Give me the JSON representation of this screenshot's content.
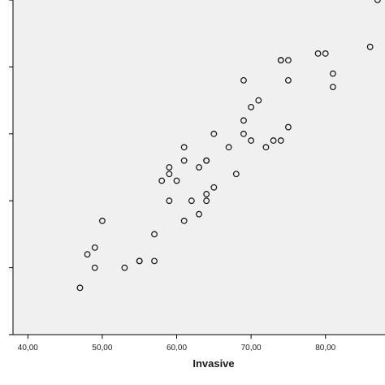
{
  "chart_data": {
    "type": "scatter",
    "title": "",
    "xlabel": "Invasive",
    "ylabel": "",
    "xlim": [
      38,
      88
    ],
    "ylim": [
      50,
      100
    ],
    "xticks": [
      40,
      50,
      60,
      70,
      80
    ],
    "xtick_labels": [
      "40,00",
      "50,00",
      "60,00",
      "70,00",
      "80,00"
    ],
    "yticks": [
      50,
      60,
      70,
      80,
      90,
      100
    ],
    "ytick_labels": [
      "",
      "",
      "",
      "",
      "",
      ""
    ],
    "grid": false,
    "legend": "none",
    "colors": {
      "plot_background": "#f0f0f0",
      "page_background": "#ffffff",
      "marker_stroke": "#111111",
      "axis": "#000000"
    },
    "marker": "open-circle",
    "x": [
      87,
      86,
      79,
      80,
      74,
      75,
      74,
      81,
      69,
      75,
      81,
      71,
      70,
      69,
      75,
      69,
      65,
      73,
      74,
      70,
      67,
      72,
      61,
      64,
      59,
      61,
      64,
      63,
      59,
      58,
      60,
      68,
      65,
      64,
      59,
      62,
      64,
      63,
      50,
      61,
      57,
      49,
      48,
      55,
      57,
      55,
      53,
      49,
      47
    ],
    "y": [
      100,
      93,
      92,
      92,
      91,
      91,
      91,
      89,
      88,
      88,
      87,
      85,
      84,
      82,
      81,
      80,
      80,
      79,
      79,
      79,
      78,
      78,
      78,
      76,
      75,
      76,
      76,
      75,
      74,
      73,
      73,
      74,
      72,
      71,
      70,
      70,
      70,
      68,
      67,
      67,
      65,
      63,
      62,
      61,
      61,
      61,
      60,
      60,
      57
    ]
  }
}
